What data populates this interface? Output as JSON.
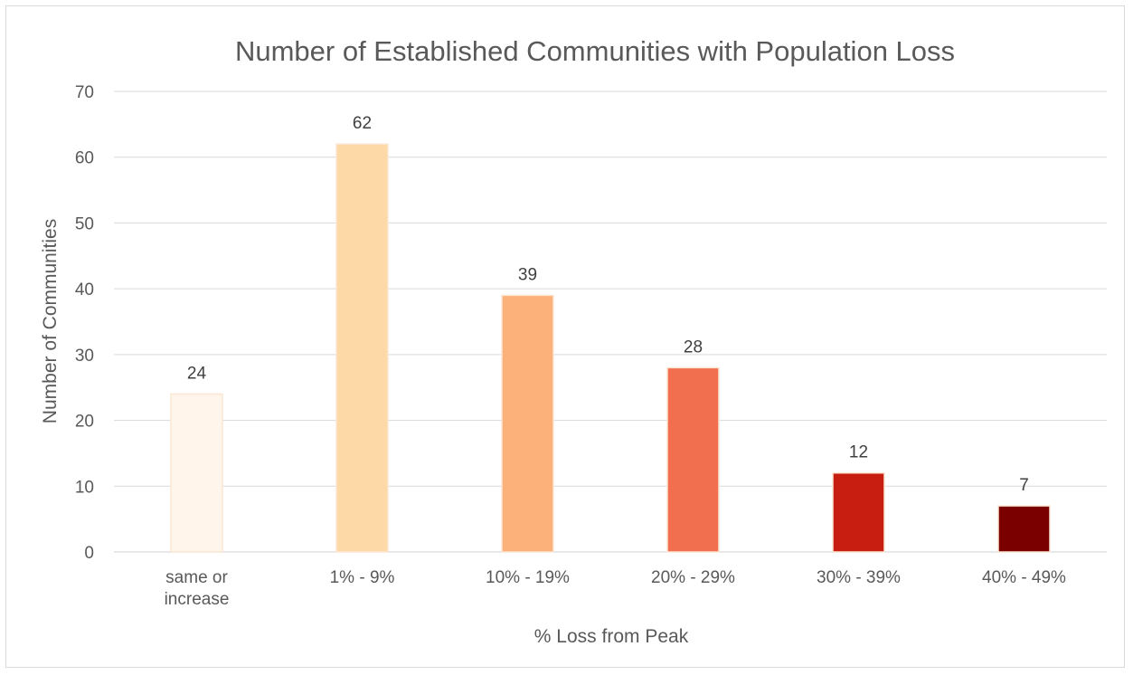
{
  "chart_data": {
    "type": "bar",
    "title": "Number of Established Communities with Population Loss",
    "xlabel": "% Loss from Peak",
    "ylabel": "Number of Communities",
    "categories": [
      "same or increase",
      "1% - 9%",
      "10% - 19%",
      "20% - 29%",
      "30% - 39%",
      "40% - 49%"
    ],
    "category_lines": [
      [
        "same or",
        "increase"
      ],
      [
        "1% - 9%"
      ],
      [
        "10% - 19%"
      ],
      [
        "20% - 29%"
      ],
      [
        "30% - 39%"
      ],
      [
        "40% - 49%"
      ]
    ],
    "values": [
      24,
      62,
      39,
      28,
      12,
      7
    ],
    "ylim": [
      0,
      70
    ],
    "yticks": [
      0,
      10,
      20,
      30,
      40,
      50,
      60,
      70
    ],
    "grid": true,
    "legend": "none",
    "data_labels": true,
    "colors": [
      "#fff5eb",
      "#fdd9a8",
      "#fcb07a",
      "#f16e4e",
      "#c81d11",
      "#7a0000"
    ]
  }
}
